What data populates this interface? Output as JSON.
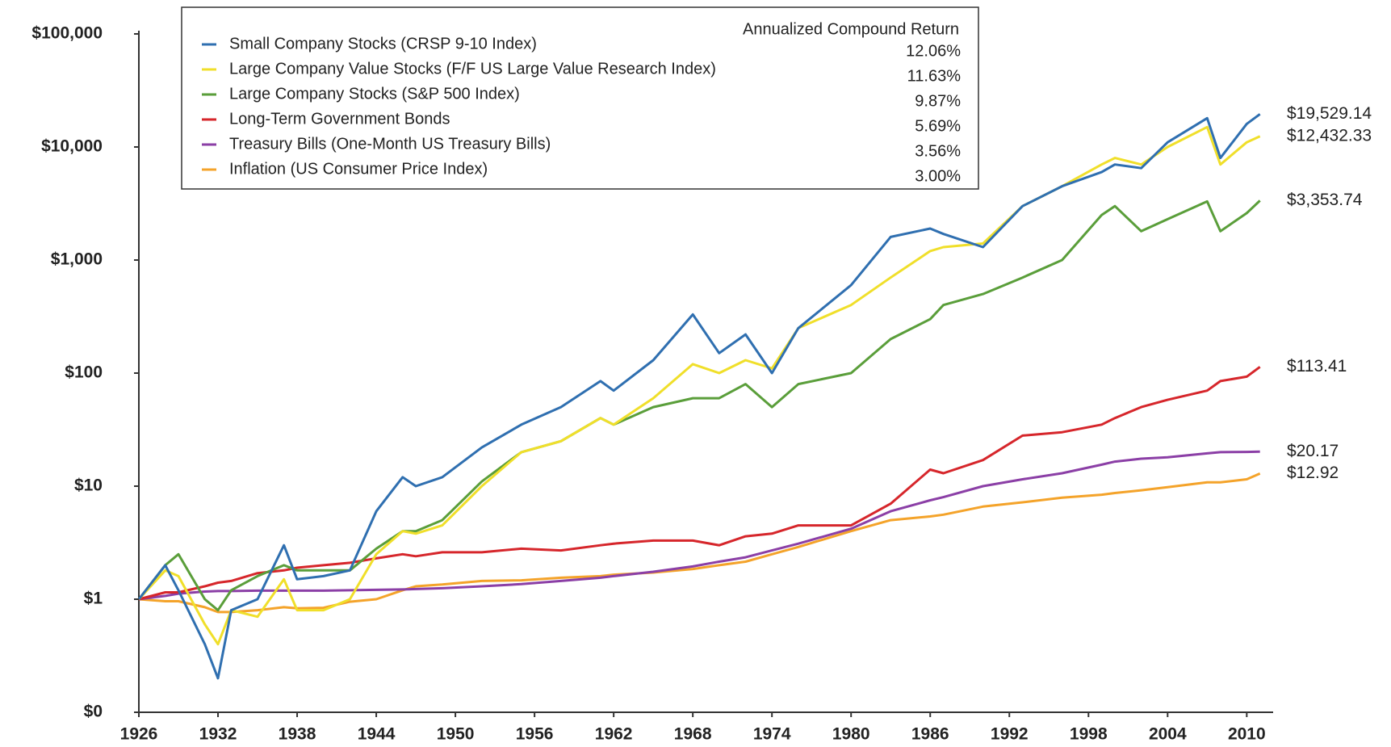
{
  "chart_data": {
    "type": "line",
    "log_y": true,
    "grid": false,
    "legend": {
      "corner": "top-left",
      "heading": "Annualized Compound Return"
    },
    "x": [
      1926,
      1928,
      1929,
      1931,
      1932,
      1933,
      1935,
      1937,
      1938,
      1940,
      1942,
      1944,
      1946,
      1947,
      1949,
      1952,
      1955,
      1958,
      1961,
      1962,
      1965,
      1968,
      1970,
      1972,
      1974,
      1976,
      1980,
      1983,
      1986,
      1987,
      1990,
      1993,
      1996,
      1999,
      2000,
      2002,
      2004,
      2007,
      2008,
      2010,
      2011
    ],
    "xlim": [
      1926,
      2012
    ],
    "xticks": [
      1926,
      1932,
      1938,
      1944,
      1950,
      1956,
      1962,
      1968,
      1974,
      1980,
      1986,
      1992,
      1998,
      2004,
      2010
    ],
    "ylim": [
      0.1,
      100000
    ],
    "yticks": [
      {
        "value": 0.1,
        "label": "$0"
      },
      {
        "value": 1,
        "label": "$1"
      },
      {
        "value": 10,
        "label": "$10"
      },
      {
        "value": 100,
        "label": "$100"
      },
      {
        "value": 1000,
        "label": "$1,000"
      },
      {
        "value": 10000,
        "label": "$10,000"
      },
      {
        "value": 100000,
        "label": "$100,000"
      }
    ],
    "series": [
      {
        "name": "Small Company Stocks (CRSP 9-10 Index)",
        "color": "#2f6fb0",
        "return": "12.06%",
        "end_label": "$19,529.14",
        "values": [
          1,
          2,
          1.2,
          0.4,
          0.2,
          0.8,
          1.0,
          3,
          1.5,
          1.6,
          1.8,
          6,
          12,
          10,
          12,
          22,
          35,
          50,
          85,
          70,
          130,
          330,
          150,
          220,
          100,
          250,
          600,
          1600,
          1900,
          1700,
          1300,
          3000,
          4500,
          6000,
          7000,
          6500,
          11000,
          18000,
          8000,
          16000,
          19529.14
        ]
      },
      {
        "name": "Large Company Value Stocks (F/F US Large Value Research Index)",
        "color": "#f0df2a",
        "return": "11.63%",
        "end_label": "$12,432.33",
        "values": [
          1,
          1.8,
          1.6,
          0.6,
          0.4,
          0.8,
          0.7,
          1.5,
          0.8,
          0.8,
          1.0,
          2.5,
          4,
          3.8,
          4.5,
          10,
          20,
          25,
          40,
          35,
          60,
          120,
          100,
          130,
          110,
          250,
          400,
          700,
          1200,
          1300,
          1400,
          3000,
          4500,
          7000,
          8000,
          7000,
          10000,
          15000,
          7000,
          11000,
          12432.33
        ]
      },
      {
        "name": "Large Company Stocks (S&P 500 Index)",
        "color": "#5a9e3a",
        "return": "9.87%",
        "end_label": "$3,353.74",
        "values": [
          1,
          2.0,
          2.5,
          1.0,
          0.8,
          1.2,
          1.6,
          2.0,
          1.8,
          1.8,
          1.8,
          2.8,
          4,
          4,
          5,
          11,
          20,
          25,
          40,
          35,
          50,
          60,
          60,
          80,
          50,
          80,
          100,
          200,
          300,
          400,
          500,
          700,
          1000,
          2500,
          3000,
          1800,
          2300,
          3300,
          1800,
          2600,
          3353.74
        ]
      },
      {
        "name": "Long-Term Government Bonds",
        "color": "#d6262b",
        "return": "5.69%",
        "end_label": "$113.41",
        "values": [
          1,
          1.15,
          1.15,
          1.3,
          1.4,
          1.45,
          1.7,
          1.8,
          1.9,
          2.0,
          2.1,
          2.3,
          2.5,
          2.4,
          2.6,
          2.6,
          2.8,
          2.7,
          3.0,
          3.1,
          3.3,
          3.3,
          3.0,
          3.6,
          3.8,
          4.5,
          4.5,
          7,
          14,
          13,
          17,
          28,
          30,
          35,
          40,
          50,
          58,
          70,
          85,
          93,
          113.41
        ]
      },
      {
        "name": "Treasury Bills (One-Month US Treasury Bills)",
        "color": "#8b3fa6",
        "return": "3.56%",
        "end_label": "$20.17",
        "values": [
          1,
          1.07,
          1.12,
          1.17,
          1.18,
          1.18,
          1.19,
          1.19,
          1.19,
          1.19,
          1.2,
          1.21,
          1.22,
          1.23,
          1.25,
          1.3,
          1.36,
          1.45,
          1.55,
          1.6,
          1.75,
          1.95,
          2.15,
          2.35,
          2.7,
          3.1,
          4.2,
          6.0,
          7.5,
          8.0,
          10.0,
          11.5,
          13.0,
          15.5,
          16.5,
          17.5,
          18.0,
          19.5,
          20.0,
          20.1,
          20.17
        ]
      },
      {
        "name": "Inflation (US Consumer Price Index)",
        "color": "#f4a32a",
        "return": "3.00%",
        "end_label": "$12.92",
        "values": [
          1,
          0.96,
          0.96,
          0.85,
          0.77,
          0.77,
          0.8,
          0.85,
          0.83,
          0.84,
          0.95,
          1.0,
          1.2,
          1.3,
          1.35,
          1.45,
          1.47,
          1.55,
          1.6,
          1.65,
          1.72,
          1.85,
          2.0,
          2.15,
          2.5,
          2.9,
          4.0,
          5.0,
          5.4,
          5.6,
          6.6,
          7.2,
          7.9,
          8.4,
          8.7,
          9.2,
          9.8,
          10.8,
          10.8,
          11.5,
          12.92
        ]
      }
    ]
  }
}
